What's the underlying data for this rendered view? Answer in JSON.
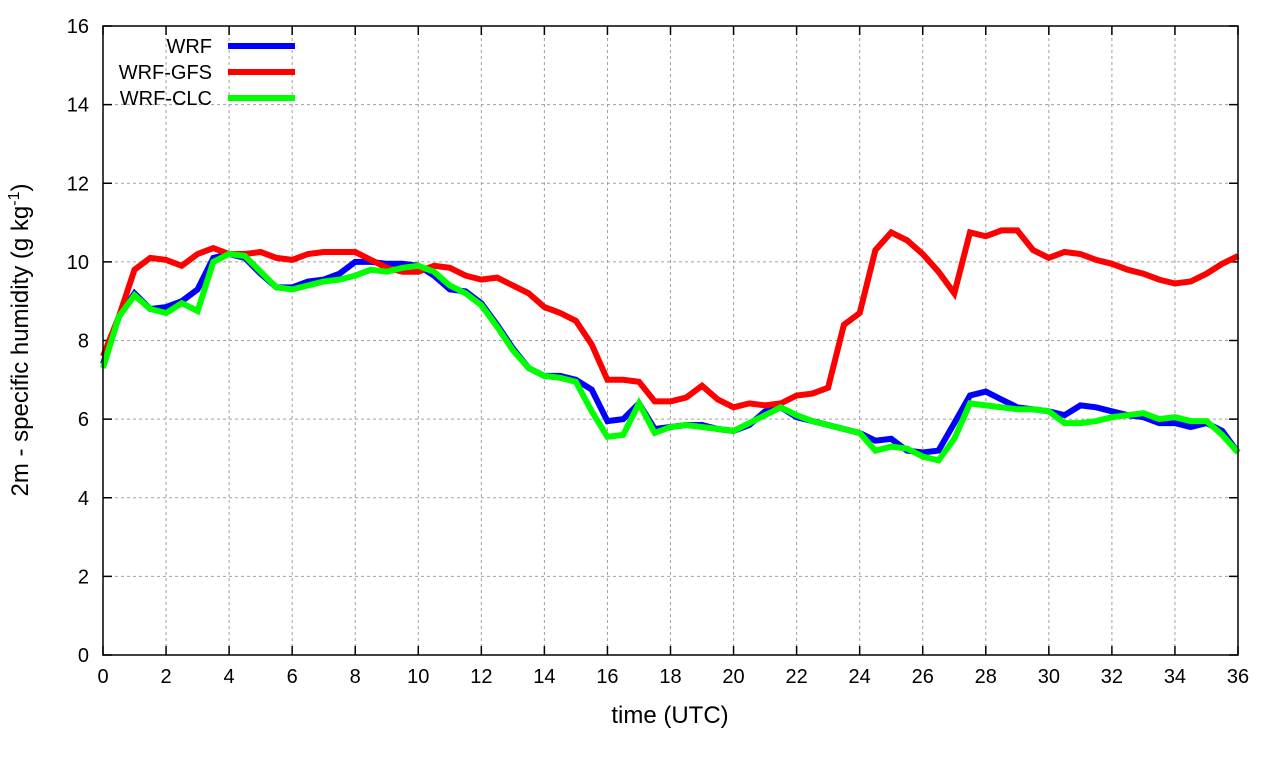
{
  "chart_data": {
    "type": "line",
    "title": "",
    "xlabel": "time (UTC)",
    "ylabel_main": "2m - specific humidity (g kg",
    "ylabel_sup": "-1",
    "ylabel_end": ")",
    "xlim": [
      0,
      36
    ],
    "ylim": [
      0,
      16
    ],
    "xticks": [
      "0",
      "2",
      "4",
      "6",
      "8",
      "10",
      "12",
      "14",
      "16",
      "18",
      "20",
      "22",
      "24",
      "26",
      "28",
      "30",
      "32",
      "34",
      "36"
    ],
    "yticks": [
      "0",
      "2",
      "4",
      "6",
      "8",
      "10",
      "12",
      "14",
      "16"
    ],
    "grid": true,
    "legend_position": "top-left",
    "x_step": 0.5,
    "series": [
      {
        "name": "WRF",
        "color": "#0000ff",
        "values": [
          7.4,
          8.6,
          9.2,
          8.8,
          8.85,
          9.0,
          9.3,
          10.1,
          10.2,
          10.1,
          9.7,
          9.35,
          9.35,
          9.5,
          9.55,
          9.7,
          10.0,
          10.0,
          9.95,
          9.95,
          9.9,
          9.65,
          9.3,
          9.25,
          8.95,
          8.4,
          7.8,
          7.3,
          7.1,
          7.1,
          7.0,
          6.75,
          5.95,
          6.0,
          6.4,
          5.75,
          5.8,
          5.85,
          5.85,
          5.75,
          5.7,
          5.85,
          6.2,
          6.3,
          6.05,
          5.95,
          5.85,
          5.75,
          5.65,
          5.45,
          5.5,
          5.2,
          5.15,
          5.2,
          5.9,
          6.6,
          6.7,
          6.5,
          6.3,
          6.25,
          6.2,
          6.1,
          6.35,
          6.3,
          6.2,
          6.1,
          6.05,
          5.9,
          5.9,
          5.8,
          5.9,
          5.7,
          5.15
        ]
      },
      {
        "name": "WRF-GFS",
        "color": "#ff0000",
        "values": [
          7.6,
          8.6,
          9.8,
          10.1,
          10.05,
          9.9,
          10.2,
          10.35,
          10.2,
          10.2,
          10.25,
          10.1,
          10.05,
          10.2,
          10.25,
          10.25,
          10.25,
          10.05,
          9.85,
          9.75,
          9.75,
          9.9,
          9.85,
          9.65,
          9.55,
          9.6,
          9.4,
          9.2,
          8.85,
          8.7,
          8.5,
          7.9,
          7.0,
          7.0,
          6.95,
          6.45,
          6.45,
          6.55,
          6.85,
          6.5,
          6.3,
          6.4,
          6.35,
          6.4,
          6.6,
          6.65,
          6.8,
          8.4,
          8.7,
          10.3,
          10.75,
          10.55,
          10.2,
          9.75,
          9.2,
          10.75,
          10.65,
          10.8,
          10.8,
          10.3,
          10.1,
          10.25,
          10.2,
          10.05,
          9.95,
          9.8,
          9.7,
          9.55,
          9.45,
          9.5,
          9.7,
          9.95,
          10.15
        ]
      },
      {
        "name": "WRF-CLC",
        "color": "#00ff00",
        "values": [
          7.3,
          8.6,
          9.15,
          8.8,
          8.7,
          8.95,
          8.75,
          10.0,
          10.2,
          10.15,
          9.75,
          9.35,
          9.3,
          9.4,
          9.5,
          9.55,
          9.65,
          9.8,
          9.75,
          9.85,
          9.9,
          9.75,
          9.4,
          9.2,
          8.9,
          8.35,
          7.75,
          7.3,
          7.1,
          7.05,
          6.95,
          6.2,
          5.55,
          5.6,
          6.4,
          5.65,
          5.8,
          5.85,
          5.8,
          5.75,
          5.7,
          5.9,
          6.1,
          6.3,
          6.1,
          5.95,
          5.85,
          5.75,
          5.65,
          5.2,
          5.3,
          5.25,
          5.05,
          4.95,
          5.5,
          6.4,
          6.35,
          6.3,
          6.25,
          6.25,
          6.2,
          5.9,
          5.9,
          5.95,
          6.05,
          6.1,
          6.15,
          6.0,
          6.05,
          5.95,
          5.95,
          5.6,
          5.15
        ]
      }
    ]
  }
}
